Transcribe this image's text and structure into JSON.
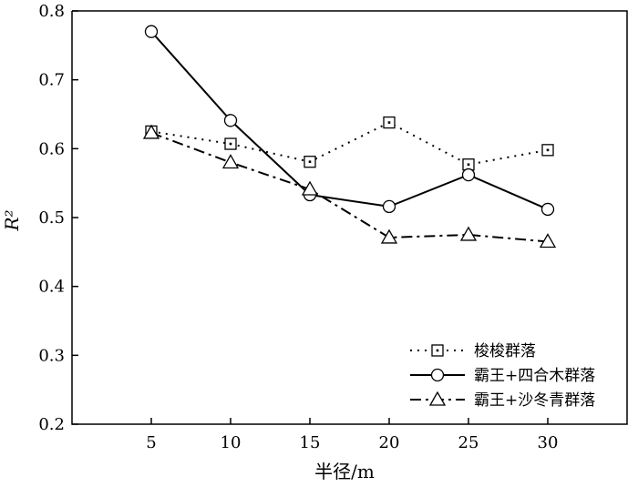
{
  "chart_data": {
    "type": "line",
    "title": "",
    "xlabel": "半径/m",
    "ylabel": "R²",
    "x": [
      5,
      10,
      15,
      20,
      25,
      30
    ],
    "xlim": [
      0,
      35
    ],
    "ylim": [
      0.2,
      0.8
    ],
    "yticks": [
      "0.2",
      "0.3",
      "0.4",
      "0.5",
      "0.6",
      "0.7",
      "0.8"
    ],
    "xticks": [
      "5",
      "10",
      "15",
      "20",
      "25",
      "30"
    ],
    "grid": false,
    "legend_position": "bottom-right",
    "series": [
      {
        "name": "梭梭群落",
        "values": [
          0.625,
          0.607,
          0.581,
          0.638,
          0.577,
          0.598
        ],
        "marker": "square",
        "line_style": "dotted",
        "color": "#000000"
      },
      {
        "name": "霸王+四合木群落",
        "values": [
          0.77,
          0.641,
          0.533,
          0.516,
          0.562,
          0.512
        ],
        "marker": "circle",
        "line_style": "solid",
        "color": "#000000"
      },
      {
        "name": "霸王+沙冬青群落",
        "values": [
          0.623,
          0.58,
          0.541,
          0.471,
          0.475,
          0.465
        ],
        "marker": "triangle",
        "line_style": "dashdot",
        "color": "#000000"
      }
    ]
  }
}
